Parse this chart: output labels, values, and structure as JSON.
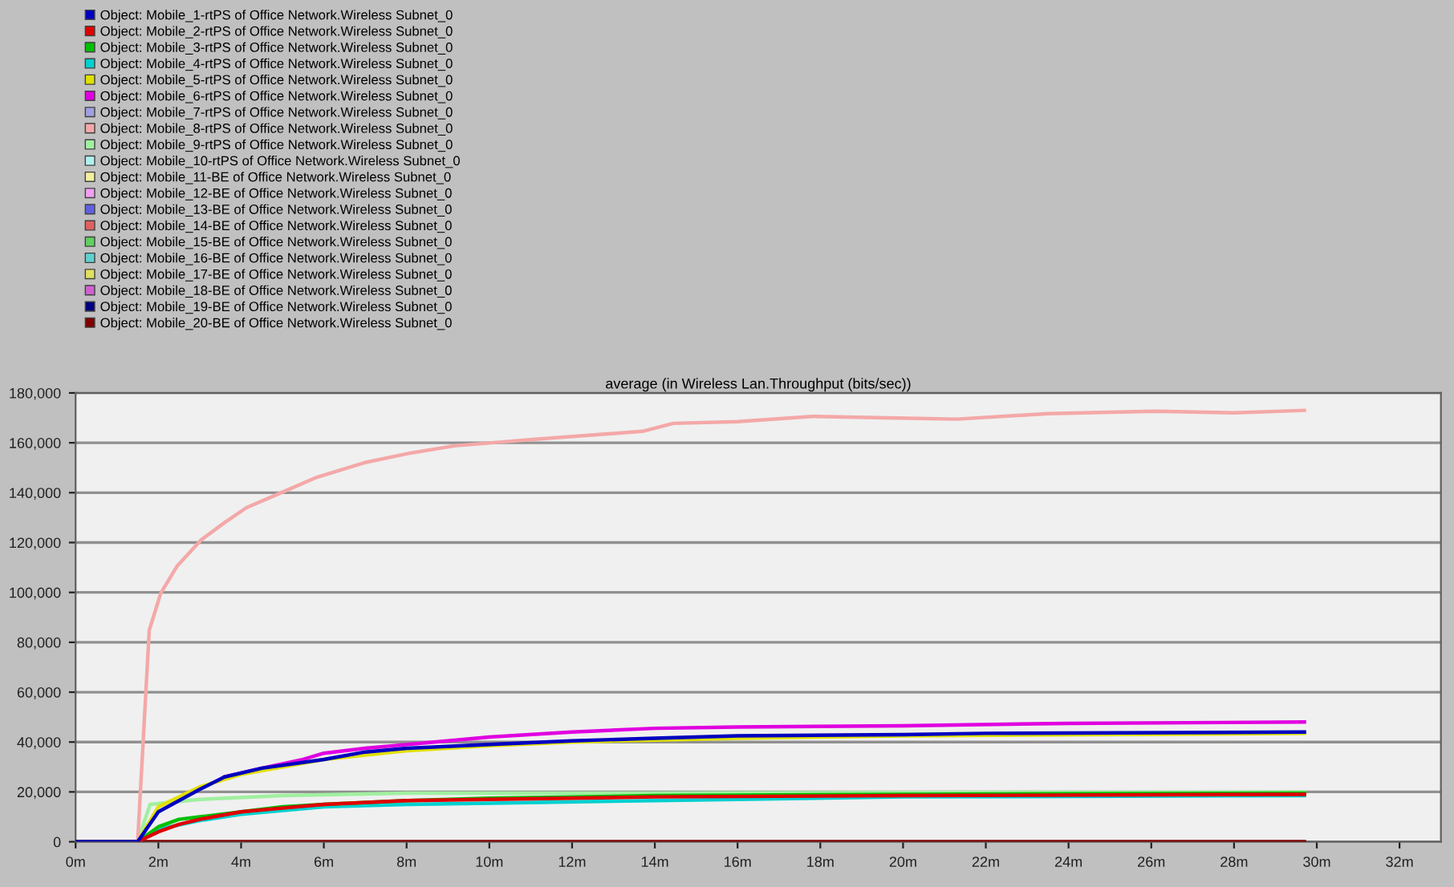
{
  "chart_data": {
    "type": "line",
    "title": "average (in Wireless Lan.Throughput (bits/sec))",
    "xlim": [
      0,
      33
    ],
    "xticks": [
      {
        "value": 0,
        "label": "0m"
      },
      {
        "value": 2,
        "label": "2m"
      },
      {
        "value": 4,
        "label": "4m"
      },
      {
        "value": 6,
        "label": "6m"
      },
      {
        "value": 8,
        "label": "8m"
      },
      {
        "value": 10,
        "label": "10m"
      },
      {
        "value": 12,
        "label": "12m"
      },
      {
        "value": 14,
        "label": "14m"
      },
      {
        "value": 16,
        "label": "16m"
      },
      {
        "value": 18,
        "label": "18m"
      },
      {
        "value": 20,
        "label": "20m"
      },
      {
        "value": 22,
        "label": "22m"
      },
      {
        "value": 24,
        "label": "24m"
      },
      {
        "value": 26,
        "label": "26m"
      },
      {
        "value": 28,
        "label": "28m"
      },
      {
        "value": 30,
        "label": "30m"
      },
      {
        "value": 32,
        "label": "32m"
      }
    ],
    "ylim": [
      0,
      180000
    ],
    "yticks": [
      0,
      {
        "value": 20000,
        "label": "20,000"
      },
      {
        "value": 40000,
        "label": "40,000"
      },
      {
        "value": 60000,
        "label": "60,000"
      },
      {
        "value": 80000,
        "label": "80,000"
      },
      {
        "value": 100000,
        "label": "100,000"
      },
      {
        "value": 120000,
        "label": "120,000"
      },
      {
        "value": 140000,
        "label": "140,000"
      },
      {
        "value": 160000,
        "label": "160,000"
      },
      {
        "value": 180000,
        "label": "180,000"
      }
    ],
    "grid": "y",
    "legend": "top left",
    "line_style": "solid",
    "marker": "none",
    "series": [
      {
        "name": "Object: Mobile_1-rtPS of Office Network.Wireless Subnet_0",
        "color": "#0000c0",
        "x": [
          0,
          1.5,
          2,
          3,
          3.6,
          4.5,
          6,
          7,
          8,
          10,
          12,
          14,
          16,
          20,
          22,
          29.7
        ],
        "values": [
          0,
          0,
          12000,
          21000,
          26000,
          29500,
          33000,
          36000,
          37500,
          39000,
          40500,
          41500,
          42500,
          43000,
          43500,
          44000
        ]
      },
      {
        "name": "Object: Mobile_2-rtPS of Office Network.Wireless Subnet_0",
        "color": "#e00000",
        "x": [
          0,
          1.5,
          2,
          2.5,
          3,
          4,
          5,
          6,
          8,
          10,
          14,
          20,
          29.7
        ],
        "values": [
          0,
          0,
          4000,
          7000,
          9000,
          12000,
          13500,
          15000,
          16500,
          17000,
          18000,
          18500,
          19000
        ]
      },
      {
        "name": "Object: Mobile_3-rtPS of Office Network.Wireless Subnet_0",
        "color": "#00c000",
        "x": [
          0,
          1.5,
          2,
          2.5,
          3,
          4,
          5,
          6,
          8,
          10,
          14,
          20,
          29.7
        ],
        "values": [
          0,
          0,
          6000,
          9000,
          10000,
          12000,
          14000,
          15000,
          16500,
          17500,
          18500,
          19000,
          19500
        ]
      },
      {
        "name": "Object: Mobile_4-rtPS of Office Network.Wireless Subnet_0",
        "color": "#00d0d0",
        "x": [
          0,
          1.5,
          2,
          3,
          4,
          6,
          8,
          10,
          14,
          16,
          20,
          29.7
        ],
        "values": [
          0,
          0,
          5000,
          8500,
          11000,
          14000,
          15000,
          15500,
          16500,
          17000,
          18000,
          18500
        ]
      },
      {
        "name": "Object: Mobile_5-rtPS of Office Network.Wireless Subnet_0",
        "color": "#e0e000",
        "x": [
          0,
          1.5,
          2,
          3,
          4,
          5,
          6,
          8,
          10,
          12,
          16,
          20,
          29.7
        ],
        "values": [
          0,
          0,
          14000,
          22000,
          27000,
          30000,
          33000,
          36500,
          38500,
          40000,
          41500,
          42500,
          43500
        ]
      },
      {
        "name": "Object: Mobile_6-rtPS of Office Network.Wireless Subnet_0",
        "color": "#e000e0",
        "x": [
          3.6,
          4.5,
          5.5,
          6,
          7,
          8,
          9,
          10,
          12,
          14,
          16,
          20,
          24,
          29.7
        ],
        "values": [
          26000,
          29500,
          33000,
          35500,
          37500,
          39000,
          40500,
          42000,
          44000,
          45500,
          46000,
          46500,
          47500,
          48000
        ]
      },
      {
        "name": "Object: Mobile_7-rtPS of Office Network.Wireless Subnet_0",
        "color": "#a0a0e0"
      },
      {
        "name": "Object: Mobile_8-rtPS of Office Network.Wireless Subnet_0",
        "color": "#f4a8a8",
        "x": [
          0,
          1.5,
          1.78,
          2.06,
          2.45,
          3.03,
          3.6,
          4.13,
          4.9,
          5.8,
          6.97,
          8.0,
          9.16,
          10.06,
          11.1,
          12.4,
          13.7,
          14.45,
          16,
          17.8,
          19.6,
          21.3,
          23.5,
          26.1,
          28,
          29.7
        ],
        "values": [
          0,
          0,
          84800,
          99800,
          110500,
          121000,
          128000,
          134000,
          139500,
          146000,
          152000,
          155600,
          158800,
          160000,
          161400,
          163000,
          164600,
          167800,
          168500,
          170600,
          170000,
          169500,
          171700,
          172700,
          172000,
          173000
        ]
      },
      {
        "name": "Object: Mobile_9-rtPS of Office Network.Wireless Subnet_0",
        "color": "#a0f0a0",
        "x": [
          0,
          1.5,
          1.8,
          3,
          5,
          8,
          14,
          29.7
        ],
        "values": [
          0,
          0,
          15000,
          17000,
          18500,
          19500,
          19500,
          20000
        ]
      },
      {
        "name": "Object: Mobile_10-rtPS of Office Network.Wireless Subnet_0",
        "color": "#b0f0f0"
      },
      {
        "name": "Object: Mobile_11-BE of Office Network.Wireless Subnet_0",
        "color": "#f0f0a0"
      },
      {
        "name": "Object: Mobile_12-BE of Office Network.Wireless Subnet_0",
        "color": "#f0a0f0"
      },
      {
        "name": "Object: Mobile_13-BE of Office Network.Wireless Subnet_0",
        "color": "#6060e0"
      },
      {
        "name": "Object: Mobile_14-BE of Office Network.Wireless Subnet_0",
        "color": "#e06060"
      },
      {
        "name": "Object: Mobile_15-BE of Office Network.Wireless Subnet_0",
        "color": "#60d060"
      },
      {
        "name": "Object: Mobile_16-BE of Office Network.Wireless Subnet_0",
        "color": "#60d0d0"
      },
      {
        "name": "Object: Mobile_17-BE of Office Network.Wireless Subnet_0",
        "color": "#e0e060"
      },
      {
        "name": "Object: Mobile_18-BE of Office Network.Wireless Subnet_0",
        "color": "#d060d0"
      },
      {
        "name": "Object: Mobile_19-BE of Office Network.Wireless Subnet_0",
        "color": "#000080"
      },
      {
        "name": "Object: Mobile_20-BE of Office Network.Wireless Subnet_0",
        "color": "#800000",
        "x": [
          0,
          29.7
        ],
        "values": [
          0,
          0
        ]
      }
    ]
  }
}
